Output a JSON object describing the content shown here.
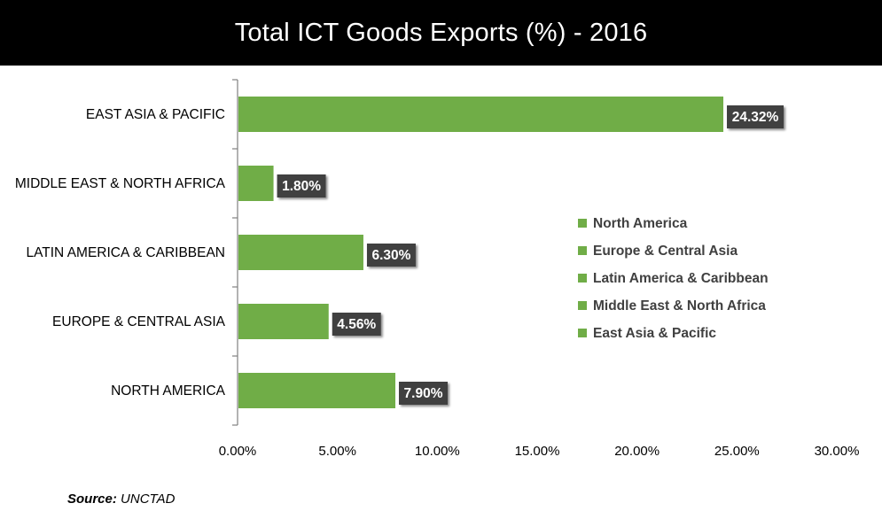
{
  "chart_data": {
    "type": "bar",
    "orientation": "horizontal",
    "title": "Total ICT Goods Exports (%) - 2016",
    "categories": [
      "EAST ASIA & PACIFIC",
      "MIDDLE EAST & NORTH AFRICA",
      "LATIN AMERICA & CARIBBEAN",
      "EUROPE & CENTRAL ASIA",
      "NORTH AMERICA"
    ],
    "values": [
      24.32,
      1.8,
      6.3,
      4.56,
      7.9
    ],
    "data_labels": [
      "24.32%",
      "1.80%",
      "6.30%",
      "4.56%",
      "7.90%"
    ],
    "xlim": [
      0,
      30
    ],
    "xticks": [
      0,
      5,
      10,
      15,
      20,
      25,
      30
    ],
    "xtick_labels": [
      "0.00%",
      "5.00%",
      "10.00%",
      "15.00%",
      "20.00%",
      "25.00%",
      "30.00%"
    ],
    "grid": false,
    "legend": {
      "placement": "right",
      "entries": [
        "North America",
        "Europe & Central Asia",
        "Latin America & Caribbean",
        "Middle East & North Africa",
        "East Asia & Pacific"
      ]
    },
    "colors": {
      "bar": "#70ad47",
      "label_bg": "#404040",
      "label_text": "#ffffff",
      "axis": "#808080"
    }
  },
  "source": {
    "label": "Source:",
    "value": "UNCTAD"
  }
}
